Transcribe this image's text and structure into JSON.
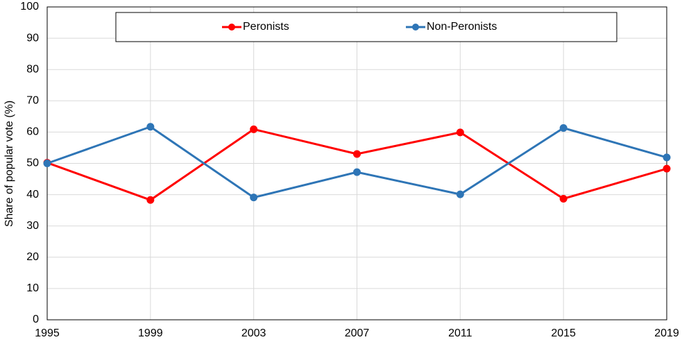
{
  "chart_data": {
    "type": "line",
    "y_label": "Share of popular vote (%)",
    "x": [
      1995,
      1999,
      2003,
      2007,
      2011,
      2015,
      2019
    ],
    "xlim": [
      1995,
      2019
    ],
    "xticks": [
      1995,
      1999,
      2003,
      2007,
      2011,
      2015,
      2019
    ],
    "ylim": [
      0,
      100
    ],
    "yticks": [
      0,
      10,
      20,
      30,
      40,
      50,
      60,
      70,
      80,
      90,
      100
    ],
    "grid": true,
    "legend": "top",
    "series": [
      {
        "name": "Peronists",
        "color": "#ff0000",
        "values": [
          50.2,
          38.3,
          60.9,
          53.0,
          59.9,
          38.7,
          48.3
        ]
      },
      {
        "name": "Non-Peronists",
        "color": "#2e75b6",
        "values": [
          50.0,
          61.7,
          39.1,
          47.2,
          40.1,
          61.3,
          51.9
        ]
      }
    ]
  }
}
